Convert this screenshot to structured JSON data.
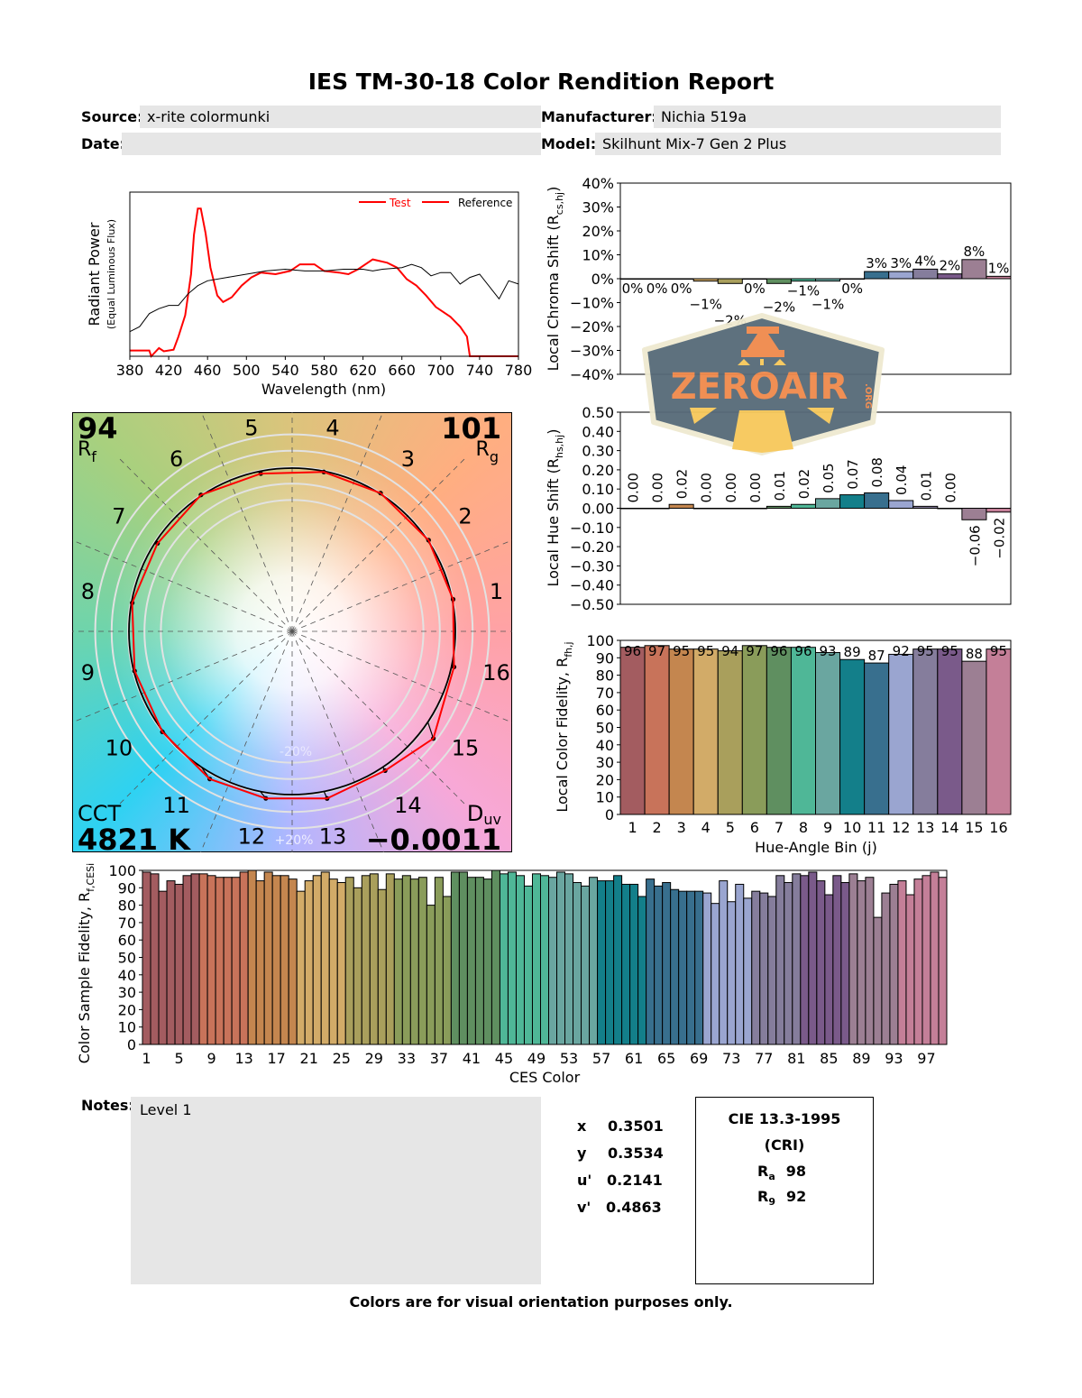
{
  "report": {
    "title": "IES TM-30-18 Color Rendition Report",
    "source_label": "Source:",
    "source_value": "x-rite colormunki",
    "date_label": "Date:",
    "date_value": "",
    "manufacturer_label": "Manufacturer:",
    "manufacturer_value": "Nichia 519a",
    "model_label": "Model:",
    "model_value": "Skilhunt Mix-7 Gen 2 Plus",
    "notes_label": "Notes:",
    "notes_value": "Level 1",
    "footer": "Colors are for visual orientation purposes only."
  },
  "chromaticity": [
    {
      "label": "x",
      "value": "0.3501"
    },
    {
      "label": "y",
      "value": "0.3534"
    },
    {
      "label": "u'",
      "value": "0.2141"
    },
    {
      "label": "v'",
      "value": "0.4863"
    }
  ],
  "cri": {
    "title": "CIE 13.3-1995",
    "subtitle": "(CRI)",
    "ra_label": "R",
    "ra_sub": "a",
    "ra_value": "98",
    "r9_label": "R",
    "r9_sub": "9",
    "r9_value": "92"
  },
  "vector_graphic": {
    "rf_value": "94",
    "rf_label": "R",
    "rf_sub": "f",
    "rg_value": "101",
    "rg_label": "R",
    "rg_sub": "g",
    "cct_label": "CCT",
    "cct_value": "4821 K",
    "duv_label": "D",
    "duv_sub": "uv",
    "duv_value": "−0.0011",
    "minus20": "-20%",
    "plus20": "+20%",
    "bin_labels": [
      "1",
      "2",
      "3",
      "4",
      "5",
      "6",
      "7",
      "8",
      "9",
      "10",
      "11",
      "12",
      "13",
      "14",
      "15",
      "16"
    ],
    "test_color": "#ff0000",
    "reference_color": "#000000"
  },
  "logo": {
    "text": "ZEROAIR",
    "suffix": ".ORG",
    "fill": "#566a78",
    "accent": "#f08a4b",
    "yellow": "#f7c85a"
  },
  "bin_colors": [
    "#a35c60",
    "#c8735a",
    "#c4864f",
    "#d2ab68",
    "#a99f5c",
    "#8a9c5a",
    "#5f8f60",
    "#4fb797",
    "#6aa6a0",
    "#137f8a",
    "#386f8e",
    "#9aa5d0",
    "#857d9c",
    "#7a5a8a",
    "#9c7f93",
    "#c47f98"
  ],
  "chart_data": [
    {
      "type": "line",
      "xlabel": "Wavelength (nm)",
      "ylabel": "Radiant Power",
      "ylabel2": "(Equal Luminous Flux)",
      "xlim": [
        380,
        780
      ],
      "xticks": [
        380,
        420,
        460,
        500,
        540,
        580,
        620,
        660,
        700,
        740,
        780
      ],
      "legend": "top-right",
      "series": [
        {
          "name": "Test",
          "color": "#ff0000",
          "x": [
            380,
            400,
            402,
            410,
            415,
            425,
            430,
            437,
            443,
            446,
            450,
            453,
            458,
            463,
            470,
            476,
            485,
            495,
            505,
            515,
            530,
            545,
            555,
            570,
            580,
            595,
            605,
            615,
            630,
            645,
            655,
            665,
            675,
            685,
            695,
            710,
            720,
            727,
            730,
            780
          ],
          "y": [
            0.035,
            0.035,
            0,
            0.05,
            0.03,
            0.04,
            0.12,
            0.25,
            0.5,
            0.74,
            0.9,
            0.9,
            0.75,
            0.54,
            0.37,
            0.33,
            0.36,
            0.43,
            0.48,
            0.51,
            0.5,
            0.52,
            0.56,
            0.56,
            0.52,
            0.51,
            0.5,
            0.53,
            0.59,
            0.57,
            0.54,
            0.47,
            0.43,
            0.37,
            0.3,
            0.24,
            0.18,
            0.12,
            0,
            0
          ]
        },
        {
          "name": "Reference",
          "color": "#000000",
          "x": [
            380,
            390,
            400,
            410,
            420,
            430,
            440,
            450,
            460,
            480,
            500,
            520,
            540,
            560,
            580,
            600,
            620,
            630,
            640,
            660,
            670,
            680,
            690,
            700,
            710,
            720,
            730,
            740,
            760,
            770,
            780
          ],
          "y": [
            0.15,
            0.18,
            0.26,
            0.29,
            0.31,
            0.31,
            0.38,
            0.43,
            0.46,
            0.48,
            0.5,
            0.52,
            0.53,
            0.52,
            0.52,
            0.53,
            0.53,
            0.52,
            0.53,
            0.54,
            0.56,
            0.54,
            0.49,
            0.51,
            0.51,
            0.44,
            0.48,
            0.5,
            0.35,
            0.46,
            0.44
          ]
        }
      ]
    },
    {
      "type": "bar",
      "ylabel": "Local Chroma Shift (R",
      "ylabel_sub": "cs,hj",
      "ylabel_end": ")",
      "ylim": [
        -40,
        40
      ],
      "yticks": [
        "40%",
        "30%",
        "20%",
        "10%",
        "0%",
        "−10%",
        "−20%",
        "−30%",
        "−40%"
      ],
      "categories": [
        1,
        2,
        3,
        4,
        5,
        6,
        7,
        8,
        9,
        10,
        11,
        12,
        13,
        14,
        15,
        16
      ],
      "values": [
        0,
        0,
        0,
        -1,
        -2,
        0,
        -2,
        -1,
        -1,
        0,
        3,
        3,
        4,
        2,
        8,
        1
      ],
      "labels": [
        "0%",
        "0%",
        "0%",
        "−1%",
        "−2%",
        "0%",
        "−2%",
        "−1%",
        "−1%",
        "0%",
        "3%",
        "3%",
        "4%",
        "2%",
        "8%",
        "1%"
      ]
    },
    {
      "type": "bar",
      "ylabel": "Local Hue Shift (R",
      "ylabel_sub": "hs,hj",
      "ylabel_end": ")",
      "ylim": [
        -0.5,
        0.5
      ],
      "yticks": [
        "0.50",
        "0.40",
        "0.30",
        "0.20",
        "0.10",
        "0.00",
        "−0.10",
        "−0.20",
        "−0.30",
        "−0.40",
        "−0.50"
      ],
      "categories": [
        1,
        2,
        3,
        4,
        5,
        6,
        7,
        8,
        9,
        10,
        11,
        12,
        13,
        14,
        15,
        16
      ],
      "values": [
        0,
        0,
        0.02,
        0,
        0,
        0,
        0.01,
        0.02,
        0.05,
        0.07,
        0.08,
        0.04,
        0.01,
        0,
        -0.06,
        -0.02
      ],
      "labels": [
        "0.00",
        "0.00",
        "0.02",
        "0.00",
        "0.00",
        "0.00",
        "0.01",
        "0.02",
        "0.05",
        "0.07",
        "0.08",
        "0.04",
        "0.01",
        "0.00",
        "−0.06",
        "−0.02"
      ]
    },
    {
      "type": "bar",
      "ylabel": "Local Color Fidelity, R",
      "ylabel_sub": "fh,j",
      "xlabel": "Hue-Angle Bin (j)",
      "ylim": [
        0,
        100
      ],
      "yticks": [
        "100",
        "90",
        "80",
        "70",
        "60",
        "50",
        "40",
        "30",
        "20",
        "10",
        "0"
      ],
      "categories": [
        "1",
        "2",
        "3",
        "4",
        "5",
        "6",
        "7",
        "8",
        "9",
        "10",
        "11",
        "12",
        "13",
        "14",
        "15",
        "16"
      ],
      "values": [
        96,
        97,
        95,
        95,
        94,
        97,
        96,
        96,
        93,
        89,
        87,
        92,
        95,
        95,
        88,
        95
      ]
    },
    {
      "type": "bar",
      "ylabel": "Color Sample Fidelity, R",
      "ylabel_sub": "f,CESi",
      "xlabel": "CES Color",
      "ylim": [
        0,
        100
      ],
      "yticks": [
        "100",
        "90",
        "80",
        "70",
        "60",
        "50",
        "40",
        "30",
        "20",
        "10",
        "0"
      ],
      "xticks": [
        "1",
        "5",
        "9",
        "13",
        "17",
        "21",
        "25",
        "29",
        "33",
        "37",
        "41",
        "45",
        "49",
        "53",
        "57",
        "61",
        "65",
        "69",
        "73",
        "77",
        "81",
        "85",
        "89",
        "93",
        "97"
      ],
      "values": [
        99,
        98,
        88,
        94,
        92,
        97,
        98,
        98,
        97,
        96,
        96,
        96,
        99,
        100,
        94,
        99,
        97,
        97,
        95,
        88,
        94,
        97,
        99,
        95,
        93,
        96,
        90,
        97,
        98,
        89,
        98,
        95,
        97,
        95,
        96,
        80,
        96,
        85,
        99,
        99,
        96,
        96,
        95,
        100,
        98,
        99,
        97,
        91,
        98,
        97,
        96,
        99,
        98,
        93,
        91,
        96,
        94,
        94,
        97,
        92,
        92,
        85,
        95,
        91,
        93,
        89,
        88,
        88,
        88,
        87,
        81,
        94,
        82,
        92,
        84,
        88,
        87,
        85,
        97,
        93,
        98,
        97,
        99,
        94,
        86,
        97,
        93,
        98,
        94,
        96,
        73,
        87,
        92,
        94,
        86,
        95,
        97,
        99,
        96
      ]
    }
  ]
}
